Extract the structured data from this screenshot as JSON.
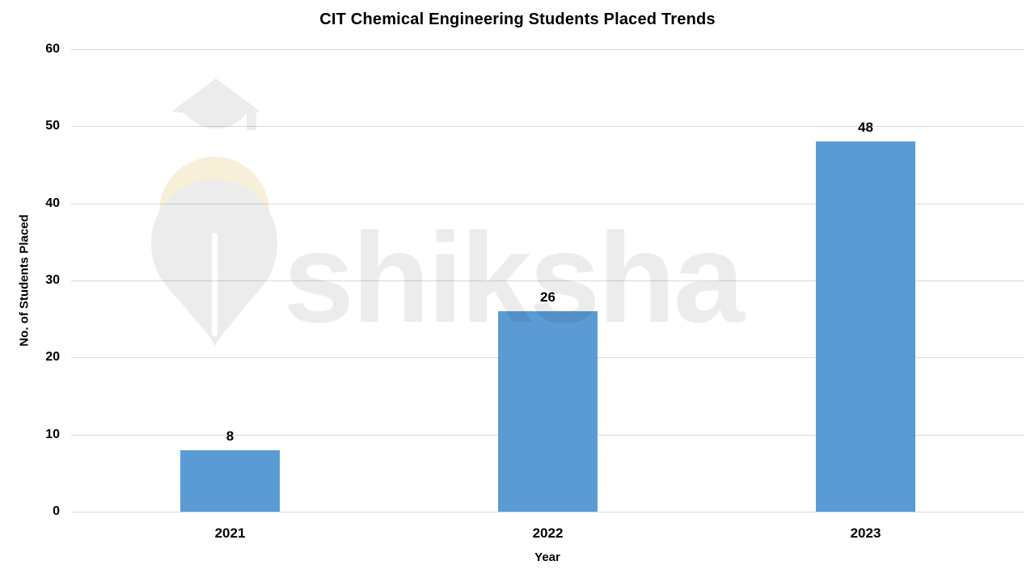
{
  "page": {
    "background": "#FFFFFF"
  },
  "chart_data": {
    "type": "bar",
    "title": "CIT Chemical Engineering Students Placed Trends",
    "xlabel": "Year",
    "ylabel": "No. of Students Placed",
    "categories": [
      "2021",
      "2022",
      "2023"
    ],
    "values": [
      8,
      26,
      48
    ],
    "ylim": [
      0,
      60
    ],
    "yticks": [
      0,
      10,
      20,
      30,
      40,
      50,
      60
    ],
    "grid": "horizontal",
    "legend": "none",
    "bar_color": "#5B9BD5",
    "gridline_color": "#D9D9D9",
    "text_color": "#000000"
  },
  "watermark": {
    "brand_text": "shiksha",
    "icon": "pen-nib-graduation-cap-icon",
    "text_color": "#ECECEC",
    "icon_color": "#ECECEC",
    "accent_color": "#F8EFD9"
  }
}
